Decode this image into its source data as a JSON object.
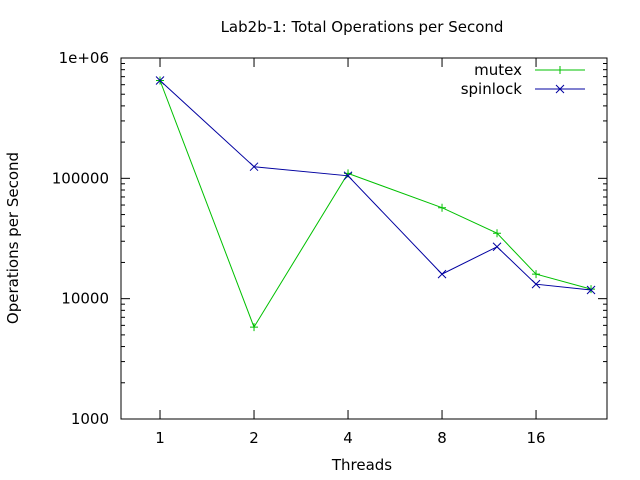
{
  "chart_data": {
    "type": "line",
    "title": "Lab2b-1: Total Operations per Second",
    "xlabel": "Threads",
    "ylabel": "Operations per Second",
    "x": [
      1,
      2,
      4,
      8,
      12,
      16,
      24
    ],
    "x_scale": "log2",
    "xlim": [
      0.75,
      27
    ],
    "x_ticks": [
      1,
      2,
      4,
      8,
      16
    ],
    "x_tick_labels": [
      "1",
      "2",
      "4",
      "8",
      "16"
    ],
    "y_scale": "log10",
    "ylim": [
      1000,
      1000000
    ],
    "y_ticks": [
      1000,
      10000,
      100000,
      1000000
    ],
    "y_tick_labels": [
      "1000",
      "10000",
      "100000",
      "1e+06"
    ],
    "grid": false,
    "legend_position": "top-right",
    "series": [
      {
        "name": "mutex",
        "color": "#00c000",
        "marker": "plus",
        "values": [
          650000,
          5800,
          110000,
          57000,
          35000,
          16000,
          12000
        ]
      },
      {
        "name": "spinlock",
        "color": "#0000a0",
        "marker": "cross",
        "values": [
          650000,
          125000,
          105000,
          16000,
          27000,
          13200,
          11800
        ]
      }
    ]
  }
}
